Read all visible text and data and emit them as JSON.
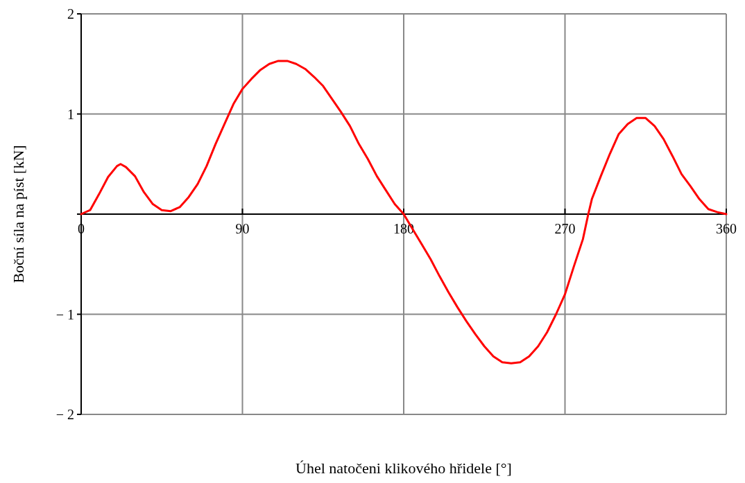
{
  "chart_data": {
    "type": "line",
    "xlabel": "Úhel natočeni klikového hřidele [°]",
    "ylabel": "Boční síla na píst [kN]",
    "x": [
      0,
      5,
      10,
      15,
      20,
      22,
      25,
      30,
      35,
      40,
      45,
      50,
      55,
      60,
      65,
      70,
      75,
      80,
      85,
      90,
      95,
      100,
      105,
      110,
      115,
      120,
      125,
      130,
      135,
      140,
      145,
      150,
      155,
      160,
      165,
      170,
      175,
      180,
      185,
      190,
      195,
      200,
      205,
      210,
      215,
      220,
      225,
      230,
      235,
      240,
      245,
      250,
      255,
      260,
      265,
      270,
      275,
      280,
      283,
      285,
      290,
      295,
      300,
      305,
      310,
      315,
      320,
      325,
      330,
      335,
      340,
      345,
      350,
      355,
      360
    ],
    "series": [
      {
        "color": "#ff0000",
        "values": [
          0,
          0.04,
          0.2,
          0.37,
          0.48,
          0.5,
          0.47,
          0.38,
          0.22,
          0.1,
          0.04,
          0.03,
          0.07,
          0.17,
          0.3,
          0.48,
          0.7,
          0.9,
          1.1,
          1.25,
          1.35,
          1.44,
          1.5,
          1.53,
          1.53,
          1.5,
          1.45,
          1.37,
          1.28,
          1.15,
          1.02,
          0.88,
          0.7,
          0.55,
          0.38,
          0.24,
          0.1,
          0,
          -0.15,
          -0.3,
          -0.45,
          -0.62,
          -0.78,
          -0.93,
          -1.07,
          -1.2,
          -1.32,
          -1.42,
          -1.48,
          -1.49,
          -1.48,
          -1.42,
          -1.32,
          -1.18,
          -1,
          -0.8,
          -0.52,
          -0.25,
          0,
          0.15,
          0.38,
          0.6,
          0.8,
          0.9,
          0.96,
          0.96,
          0.88,
          0.75,
          0.58,
          0.4,
          0.28,
          0.15,
          0.05,
          0.02,
          0
        ]
      }
    ],
    "xlim": [
      0,
      360
    ],
    "xticks": [
      0,
      90,
      180,
      270,
      360
    ],
    "ylim": [
      -2,
      2
    ],
    "yticks": [
      2,
      1,
      {
        "value": 0,
        "label": null
      },
      {
        "value": -1,
        "label": "− 1"
      },
      {
        "value": -2,
        "label": "− 2"
      }
    ],
    "grid": true,
    "marker": "none",
    "line_style": "solid"
  }
}
